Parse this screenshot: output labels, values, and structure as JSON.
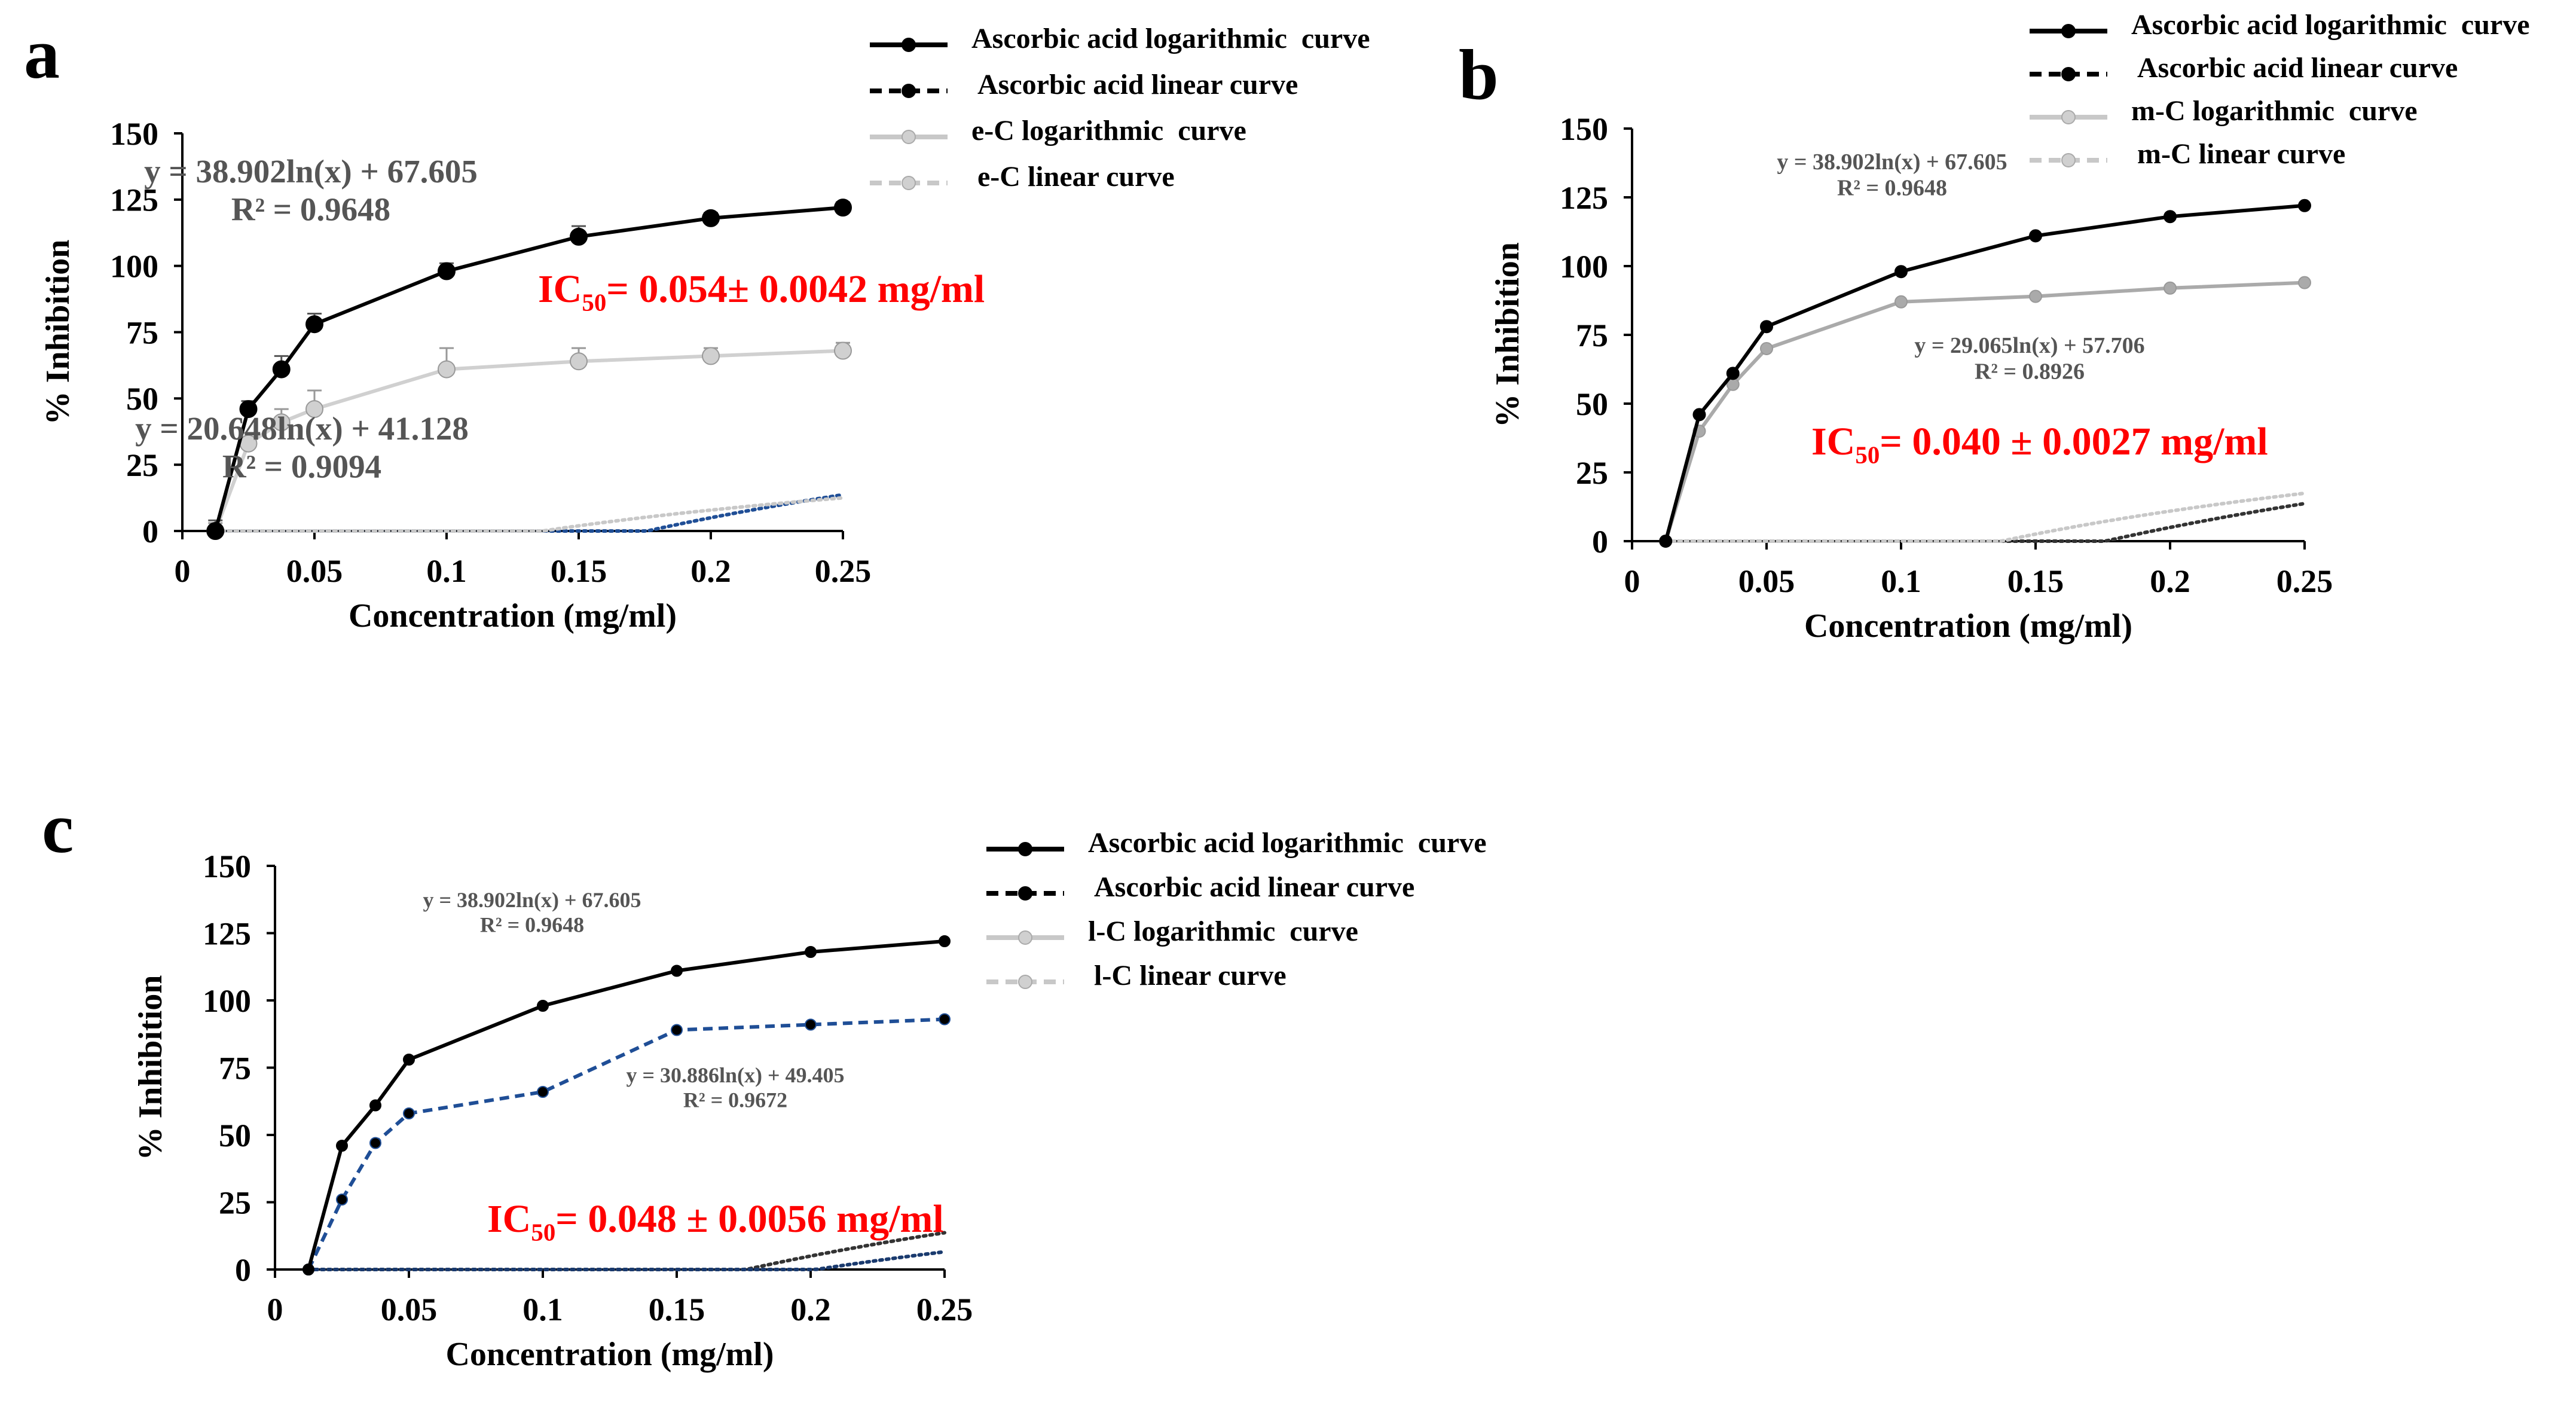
{
  "figure": {
    "panels": [
      "a",
      "b",
      "c"
    ]
  },
  "colors": {
    "black": "#000000",
    "light_gray": "#c8c8c8",
    "mid_gray": "#aaaaaa",
    "blue": "#1f4e96",
    "red": "#ff0000",
    "text_gray": "#555555"
  },
  "chart_data": [
    {
      "panel": "a",
      "type": "line",
      "xlabel": "Concentration (mg/ml)",
      "ylabel": "% Inhibition",
      "xlim": [
        0,
        0.25
      ],
      "ylim": [
        0,
        150
      ],
      "x_ticks": [
        "0",
        "0.05",
        "0.1",
        "0.15",
        "0.2",
        "0.25"
      ],
      "y_ticks": [
        "0",
        "25",
        "50",
        "75",
        "100",
        "125",
        "150"
      ],
      "x": [
        0.0125,
        0.025,
        0.0375,
        0.05,
        0.1,
        0.15,
        0.2,
        0.25
      ],
      "series": [
        {
          "name": "Ascorbic acid logarithmic curve",
          "values": [
            0,
            46,
            61,
            78,
            98,
            111,
            118,
            122
          ],
          "errors": [
            4,
            3,
            5,
            4,
            3,
            4,
            2,
            2
          ],
          "style": "solid",
          "color": "#000000"
        },
        {
          "name": "e-C logarithmic curve",
          "values": [
            0,
            33,
            41,
            46,
            61,
            64,
            66,
            68
          ],
          "errors": [
            3,
            4,
            5,
            7,
            8,
            5,
            3,
            3
          ],
          "style": "solid",
          "color": "#d0d0d0"
        }
      ],
      "legend": [
        {
          "label": "Ascorbic acid logarithmic  curve",
          "style": "solid",
          "color": "#000000"
        },
        {
          "label": "Ascorbic acid linear curve",
          "style": "dashed",
          "color": "#000000"
        },
        {
          "label": "e-C logarithmic  curve",
          "style": "solid",
          "color": "#c8c8c8"
        },
        {
          "label": "e-C linear curve",
          "style": "dashed",
          "color": "#c8c8c8"
        }
      ],
      "trendlines": [
        {
          "a": 38.902,
          "b": 67.605,
          "color": "#1f4e96",
          "equation": "y = 38.902ln(x) + 67.605",
          "r2": "R² = 0.9648"
        },
        {
          "a": 20.648,
          "b": 41.128,
          "color": "#c8c8c8",
          "equation": "y = 20.648ln(x) + 41.128",
          "r2": "R² = 0.9094"
        }
      ],
      "ic50": {
        "prefix": "IC",
        "sub": "50",
        "text": "= 0.054± 0.0042 mg/ml"
      }
    },
    {
      "panel": "b",
      "type": "line",
      "xlabel": "Concentration (mg/ml)",
      "ylabel": "% Inhibition",
      "xlim": [
        0,
        0.25
      ],
      "ylim": [
        0,
        150
      ],
      "x_ticks": [
        "0",
        "0.05",
        "0.1",
        "0.15",
        "0.2",
        "0.25"
      ],
      "y_ticks": [
        "0",
        "25",
        "50",
        "75",
        "100",
        "125",
        "150"
      ],
      "x": [
        0.0125,
        0.025,
        0.0375,
        0.05,
        0.1,
        0.15,
        0.2,
        0.25
      ],
      "series": [
        {
          "name": "Ascorbic acid logarithmic curve",
          "values": [
            0,
            46,
            61,
            78,
            98,
            111,
            118,
            122
          ],
          "style": "solid",
          "color": "#000000"
        },
        {
          "name": "m-C logarithmic curve",
          "values": [
            0,
            40,
            57,
            70,
            87,
            89,
            92,
            94
          ],
          "style": "solid",
          "color": "#aaaaaa"
        }
      ],
      "legend": [
        {
          "label": "Ascorbic acid logarithmic  curve",
          "style": "solid",
          "color": "#000000"
        },
        {
          "label": "Ascorbic acid linear curve",
          "style": "dashed",
          "color": "#000000"
        },
        {
          "label": "m-C logarithmic  curve",
          "style": "solid",
          "color": "#c8c8c8"
        },
        {
          "label": "m-C linear curve",
          "style": "dashed",
          "color": "#c8c8c8"
        }
      ],
      "trendlines": [
        {
          "a": 38.902,
          "b": 67.605,
          "color": "#333333",
          "equation": "y = 38.902ln(x) + 67.605",
          "r2": "R² = 0.9648"
        },
        {
          "a": 29.065,
          "b": 57.706,
          "color": "#c8c8c8",
          "equation": "y = 29.065ln(x) + 57.706",
          "r2": "R² = 0.8926"
        }
      ],
      "ic50": {
        "prefix": "IC",
        "sub": "50",
        "text": "= 0.040 ± 0.0027 mg/ml"
      }
    },
    {
      "panel": "c",
      "type": "line",
      "xlabel": "Concentration (mg/ml)",
      "ylabel": "% Inhibition",
      "xlim": [
        0,
        0.25
      ],
      "ylim": [
        0,
        150
      ],
      "x_ticks": [
        "0",
        "0.05",
        "0.1",
        "0.15",
        "0.2",
        "0.25"
      ],
      "y_ticks": [
        "0",
        "25",
        "50",
        "75",
        "100",
        "125",
        "150"
      ],
      "x": [
        0.0125,
        0.025,
        0.0375,
        0.05,
        0.1,
        0.15,
        0.2,
        0.25
      ],
      "series": [
        {
          "name": "Ascorbic acid logarithmic curve",
          "values": [
            0,
            46,
            61,
            78,
            98,
            111,
            118,
            122
          ],
          "style": "solid",
          "color": "#000000"
        },
        {
          "name": "l-C logarithmic curve",
          "values": [
            0,
            26,
            47,
            58,
            66,
            89,
            91,
            93
          ],
          "style": "dashed",
          "color": "#1f4e96"
        }
      ],
      "legend": [
        {
          "label": "Ascorbic acid logarithmic  curve",
          "style": "solid",
          "color": "#000000"
        },
        {
          "label": "Ascorbic acid linear curve",
          "style": "dashed",
          "color": "#000000"
        },
        {
          "label": "l-C logarithmic  curve",
          "style": "solid",
          "color": "#c8c8c8"
        },
        {
          "label": "l-C linear curve",
          "style": "dashed",
          "color": "#c8c8c8"
        }
      ],
      "trendlines": [
        {
          "a": 38.902,
          "b": 67.605,
          "color": "#333333",
          "equation": "y = 38.902ln(x) + 67.605",
          "r2": "R² = 0.9648"
        },
        {
          "a": 30.886,
          "b": 49.405,
          "color": "#1a3a6e",
          "equation": "y = 30.886ln(x) + 49.405",
          "r2": "R² = 0.9672"
        }
      ],
      "ic50": {
        "prefix": "IC",
        "sub": "50",
        "text": "= 0.048 ± 0.0056 mg/ml"
      }
    }
  ]
}
